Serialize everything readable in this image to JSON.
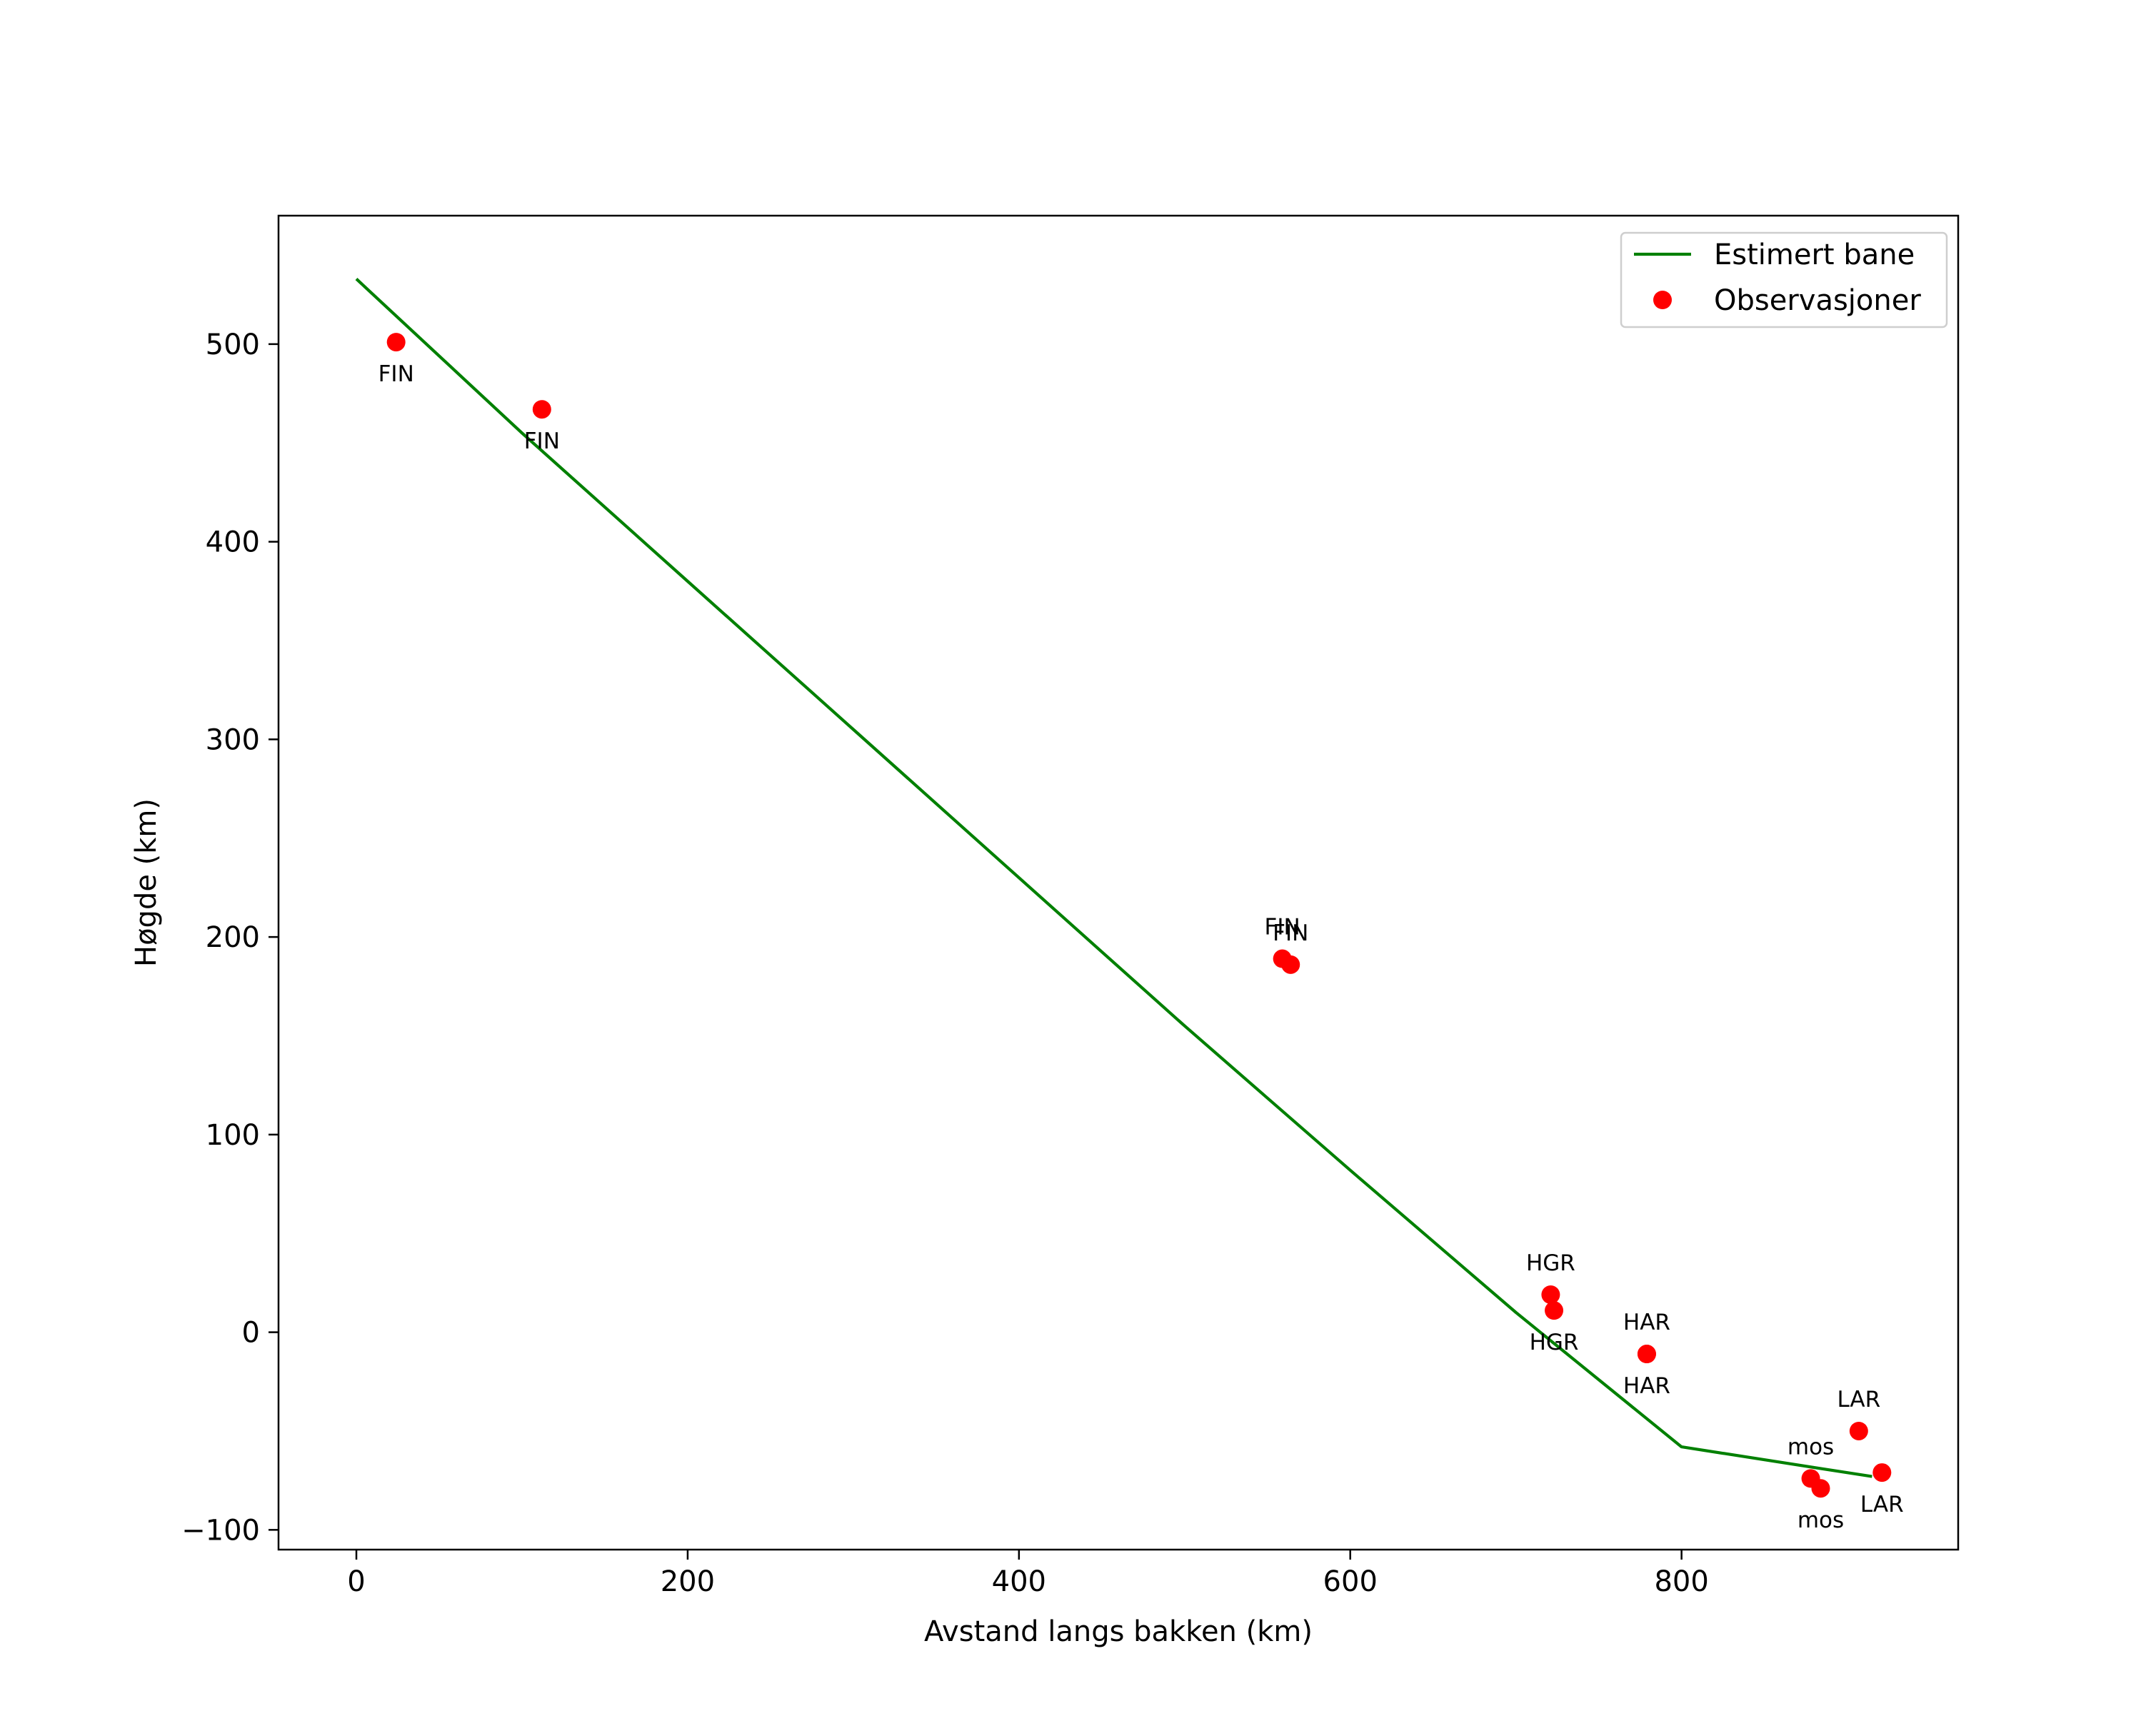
{
  "chart_data": {
    "type": "scatter",
    "title": "",
    "xlabel": "Avstand langs bakken (km)",
    "ylabel": "Høgde (km)",
    "xlim": [
      -47,
      967
    ],
    "ylim": [
      -110,
      565
    ],
    "xticks": [
      0,
      200,
      400,
      600,
      800
    ],
    "yticks": [
      -100,
      0,
      100,
      200,
      300,
      400,
      500
    ],
    "xtick_labels": [
      "0",
      "200",
      "400",
      "600",
      "800"
    ],
    "ytick_labels": [
      "−100",
      "0",
      "100",
      "200",
      "300",
      "400",
      "500"
    ],
    "grid": false,
    "legend_position": "top-right",
    "colors": {
      "line": "#008000",
      "points": "#ff0000"
    },
    "series": [
      {
        "name": "Estimert bane",
        "kind": "line",
        "x": [
          0,
          100,
          200,
          300,
          400,
          500,
          600,
          700,
          800,
          915
        ],
        "y": [
          533,
          455,
          380,
          305,
          230,
          155,
          82,
          10,
          -58,
          -73
        ]
      },
      {
        "name": "Observasjoner",
        "kind": "scatter",
        "points": [
          {
            "x": 24,
            "y": 501,
            "label": "FIN",
            "label_side": "below"
          },
          {
            "x": 112,
            "y": 467,
            "label": "FIN",
            "label_side": "below"
          },
          {
            "x": 559,
            "y": 189,
            "label": "FIN",
            "label_side": "above"
          },
          {
            "x": 564,
            "y": 186,
            "label": "FIN",
            "label_side": "above"
          },
          {
            "x": 721,
            "y": 19,
            "label": "HGR",
            "label_side": "above"
          },
          {
            "x": 723,
            "y": 11,
            "label": "HGR",
            "label_side": "below"
          },
          {
            "x": 779,
            "y": -11,
            "label": "HAR",
            "label_side": "above"
          },
          {
            "x": 779,
            "y": -11,
            "label": "HAR",
            "label_side": "below"
          },
          {
            "x": 878,
            "y": -74,
            "label": "mos",
            "label_side": "above"
          },
          {
            "x": 884,
            "y": -79,
            "label": "mos",
            "label_side": "below"
          },
          {
            "x": 907,
            "y": -50,
            "label": "LAR",
            "label_side": "above"
          },
          {
            "x": 921,
            "y": -71,
            "label": "LAR",
            "label_side": "below"
          }
        ]
      }
    ],
    "legend": [
      {
        "label": "Estimert bane",
        "marker": "line"
      },
      {
        "label": "Observasjoner",
        "marker": "circle"
      }
    ]
  }
}
